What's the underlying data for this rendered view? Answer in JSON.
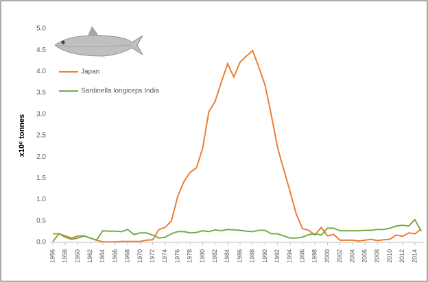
{
  "chart_data": {
    "type": "line",
    "ylabel": "x10⁶ tonnes",
    "x": [
      1956,
      1957,
      1958,
      1959,
      1960,
      1961,
      1962,
      1963,
      1964,
      1965,
      1966,
      1967,
      1968,
      1969,
      1970,
      1971,
      1972,
      1973,
      1974,
      1975,
      1976,
      1977,
      1978,
      1979,
      1980,
      1981,
      1982,
      1983,
      1984,
      1985,
      1986,
      1987,
      1988,
      1989,
      1990,
      1991,
      1992,
      1993,
      1994,
      1995,
      1996,
      1997,
      1998,
      1999,
      2000,
      2001,
      2002,
      2003,
      2004,
      2005,
      2006,
      2007,
      2008,
      2009,
      2010,
      2011,
      2012,
      2013,
      2014,
      2015
    ],
    "series": [
      {
        "name": "Japan",
        "color": "#ed7d31",
        "values": [
          0.2,
          0.2,
          0.15,
          0.1,
          0.15,
          0.15,
          0.1,
          0.05,
          0.01,
          0.01,
          0.01,
          0.02,
          0.02,
          0.02,
          0.02,
          0.05,
          0.06,
          0.3,
          0.35,
          0.5,
          1.07,
          1.42,
          1.64,
          1.74,
          2.2,
          3.06,
          3.3,
          3.75,
          4.18,
          3.87,
          4.22,
          4.36,
          4.49,
          4.1,
          3.68,
          2.98,
          2.22,
          1.7,
          1.19,
          0.66,
          0.32,
          0.28,
          0.17,
          0.35,
          0.15,
          0.18,
          0.05,
          0.05,
          0.05,
          0.03,
          0.05,
          0.07,
          0.04,
          0.06,
          0.07,
          0.17,
          0.14,
          0.22,
          0.2,
          0.31
        ]
      },
      {
        "name": "Sardinella longiceps India",
        "color": "#70ad47",
        "values": [
          0.02,
          0.2,
          0.12,
          0.07,
          0.1,
          0.15,
          0.1,
          0.05,
          0.27,
          0.26,
          0.26,
          0.25,
          0.3,
          0.18,
          0.22,
          0.22,
          0.17,
          0.1,
          0.12,
          0.2,
          0.25,
          0.25,
          0.22,
          0.23,
          0.27,
          0.25,
          0.29,
          0.27,
          0.3,
          0.29,
          0.28,
          0.26,
          0.25,
          0.28,
          0.28,
          0.2,
          0.2,
          0.15,
          0.1,
          0.1,
          0.12,
          0.18,
          0.2,
          0.17,
          0.33,
          0.33,
          0.27,
          0.27,
          0.27,
          0.27,
          0.28,
          0.28,
          0.3,
          0.3,
          0.33,
          0.38,
          0.4,
          0.38,
          0.53,
          0.26
        ]
      }
    ],
    "xlim": [
      1956,
      2015
    ],
    "xticks": [
      1956,
      1958,
      1960,
      1962,
      1964,
      1966,
      1968,
      1970,
      1972,
      1974,
      1976,
      1978,
      1980,
      1982,
      1984,
      1986,
      1988,
      1990,
      1992,
      1994,
      1996,
      1998,
      2000,
      2002,
      2004,
      2006,
      2008,
      2010,
      2012,
      2014
    ],
    "ylim": [
      0,
      5
    ],
    "yticks": [
      {
        "value": 0,
        "label": "0.0"
      },
      {
        "value": 0.5,
        "label": "0.5"
      },
      {
        "value": 1,
        "label": "1.0"
      },
      {
        "value": 1.5,
        "label": "1.5"
      },
      {
        "value": 2,
        "label": "2.0"
      },
      {
        "value": 2.5,
        "label": "2.5"
      },
      {
        "value": 3,
        "label": "3.0"
      },
      {
        "value": 3.5,
        "label": "3.5"
      },
      {
        "value": 4,
        "label": "4.0"
      },
      {
        "value": 4.5,
        "label": "4.5"
      },
      {
        "value": 5,
        "label": "5.0"
      }
    ],
    "legend": "top-left"
  }
}
